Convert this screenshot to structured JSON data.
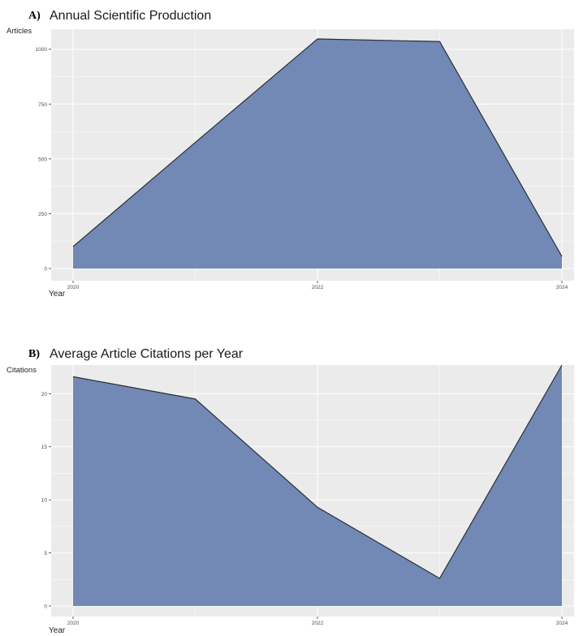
{
  "panels": [
    {
      "letter": "A)",
      "title": "Annual Scientific Production",
      "ylabel": "Articles",
      "xlabel": "Year"
    },
    {
      "letter": "B)",
      "title": "Average Article Citations per Year",
      "ylabel": "Citations",
      "xlabel": "Year"
    }
  ],
  "colors": {
    "panel_bg": "#ebebeb",
    "grid": "#ffffff",
    "fill": "#7189b4",
    "line": "#2b2f3a",
    "tick_text": "#4d4d4d"
  },
  "chart_data": [
    {
      "type": "area",
      "title": "Annual Scientific Production",
      "xlabel": "Year",
      "ylabel": "Articles",
      "x": [
        2020,
        2021,
        2022,
        2023,
        2024
      ],
      "series": [
        {
          "values": [
            100,
            575,
            1047,
            1035,
            55
          ]
        }
      ],
      "xticks": [
        2020,
        2022,
        2024
      ],
      "yticks": [
        0,
        250,
        500,
        750,
        1000
      ],
      "xlim": [
        2020,
        2024
      ],
      "ylim": [
        0,
        1047
      ],
      "grid": true
    },
    {
      "type": "area",
      "title": "Average Article Citations per Year",
      "xlabel": "Year",
      "ylabel": "Citations",
      "x": [
        2020,
        2021,
        2022,
        2023,
        2024
      ],
      "series": [
        {
          "values": [
            21.6,
            19.5,
            9.3,
            2.6,
            22.7
          ]
        }
      ],
      "xticks": [
        2020,
        2022,
        2024
      ],
      "yticks": [
        0,
        5,
        10,
        15,
        20
      ],
      "xlim": [
        2020,
        2024
      ],
      "ylim": [
        0,
        22.7
      ],
      "grid": true
    }
  ]
}
